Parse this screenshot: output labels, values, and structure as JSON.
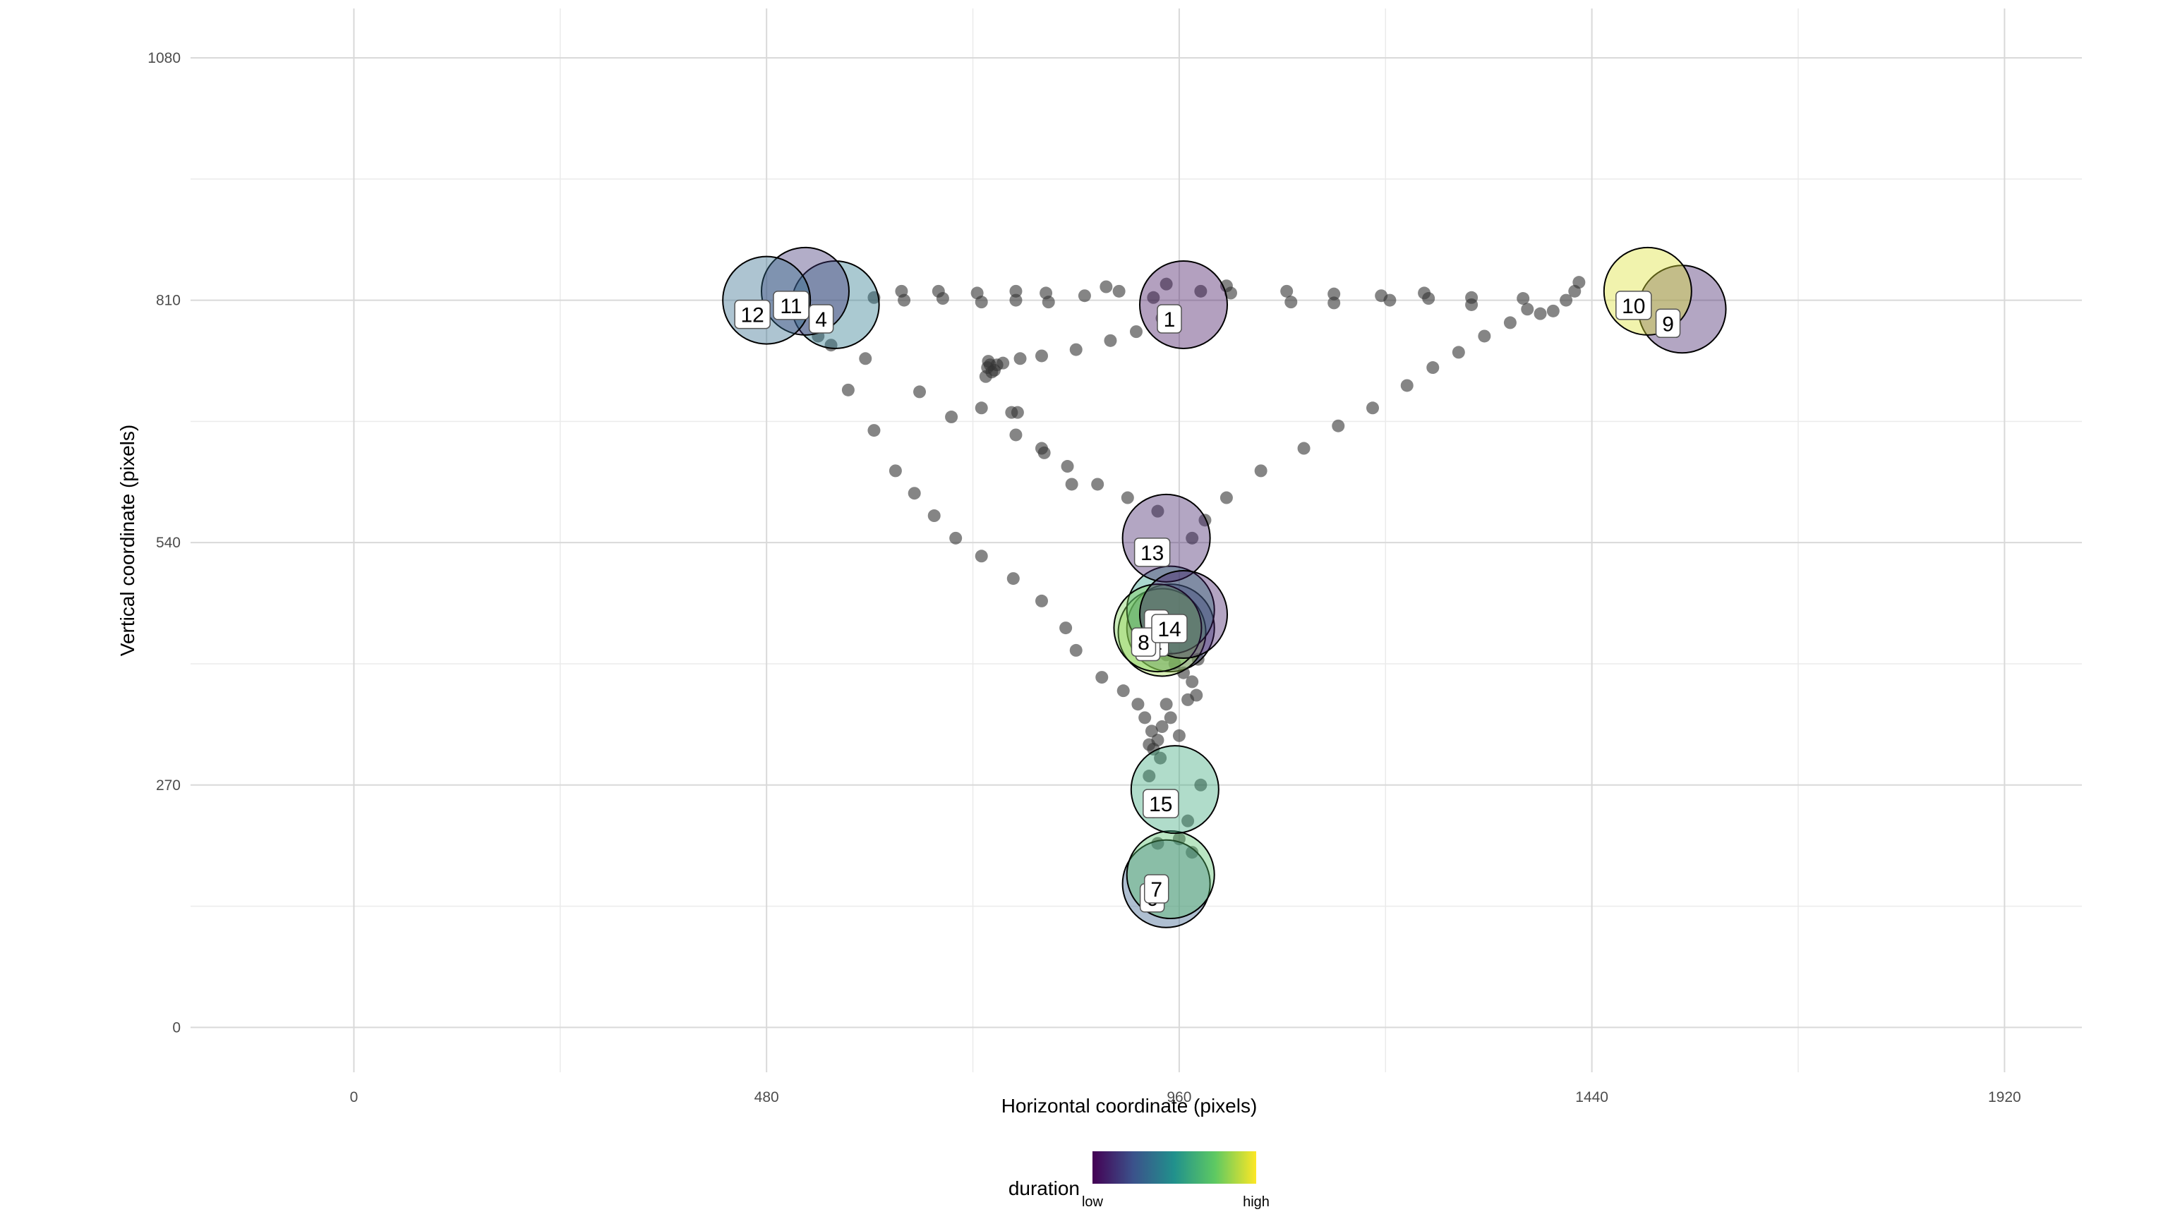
{
  "chart_data": {
    "type": "scatter",
    "title": "",
    "xlabel": "Horizontal coordinate (pixels)",
    "ylabel": "Vertical coordinate (pixels)",
    "xlim": [
      -190,
      2010
    ],
    "ylim": [
      -50,
      1135
    ],
    "x_ticks": [
      0,
      480,
      960,
      1440,
      1920
    ],
    "y_ticks": [
      0,
      270,
      540,
      810,
      1080
    ],
    "grid": true,
    "legend": {
      "position": "bottom",
      "title": "duration",
      "low_label": "low",
      "high_label": "high",
      "colormap": [
        "#440154",
        "#3b528b",
        "#21918c",
        "#5ec962",
        "#fde725"
      ]
    },
    "fixations": [
      {
        "label": "1",
        "x": 965,
        "y": 805,
        "duration": 0.05
      },
      {
        "label": "2",
        "x": 950,
        "y": 445,
        "duration": 0.2
      },
      {
        "label": "3",
        "x": 940,
        "y": 440,
        "duration": 0.85
      },
      {
        "label": "4",
        "x": 560,
        "y": 805,
        "duration": 0.4
      },
      {
        "label": "5",
        "x": 950,
        "y": 465,
        "duration": 0.55
      },
      {
        "label": "6",
        "x": 945,
        "y": 160,
        "duration": 0.3
      },
      {
        "label": "7",
        "x": 950,
        "y": 170,
        "duration": 0.7
      },
      {
        "label": "8",
        "x": 935,
        "y": 445,
        "duration": 0.8
      },
      {
        "label": "9",
        "x": 1545,
        "y": 800,
        "duration": 0.1
      },
      {
        "label": "10",
        "x": 1505,
        "y": 820,
        "duration": 0.95
      },
      {
        "label": "11",
        "x": 525,
        "y": 820,
        "duration": 0.15
      },
      {
        "label": "12",
        "x": 480,
        "y": 810,
        "duration": 0.35
      },
      {
        "label": "13",
        "x": 945,
        "y": 545,
        "duration": 0.1
      },
      {
        "label": "14",
        "x": 965,
        "y": 460,
        "duration": 0.08
      },
      {
        "label": "15",
        "x": 955,
        "y": 265,
        "duration": 0.6
      }
    ],
    "samples": [
      {
        "x": 605,
        "y": 813
      },
      {
        "x": 637,
        "y": 820
      },
      {
        "x": 640,
        "y": 810
      },
      {
        "x": 680,
        "y": 820
      },
      {
        "x": 685,
        "y": 812
      },
      {
        "x": 725,
        "y": 818
      },
      {
        "x": 730,
        "y": 808
      },
      {
        "x": 770,
        "y": 820
      },
      {
        "x": 770,
        "y": 810
      },
      {
        "x": 805,
        "y": 818
      },
      {
        "x": 808,
        "y": 808
      },
      {
        "x": 850,
        "y": 815
      },
      {
        "x": 875,
        "y": 825
      },
      {
        "x": 890,
        "y": 820
      },
      {
        "x": 930,
        "y": 813
      },
      {
        "x": 945,
        "y": 828
      },
      {
        "x": 985,
        "y": 820
      },
      {
        "x": 1015,
        "y": 826
      },
      {
        "x": 1020,
        "y": 818
      },
      {
        "x": 1085,
        "y": 820
      },
      {
        "x": 1090,
        "y": 808
      },
      {
        "x": 1140,
        "y": 817
      },
      {
        "x": 1140,
        "y": 807
      },
      {
        "x": 1195,
        "y": 815
      },
      {
        "x": 1205,
        "y": 810
      },
      {
        "x": 1245,
        "y": 818
      },
      {
        "x": 1250,
        "y": 812
      },
      {
        "x": 1300,
        "y": 813
      },
      {
        "x": 1300,
        "y": 805
      },
      {
        "x": 1360,
        "y": 812
      },
      {
        "x": 1365,
        "y": 800
      },
      {
        "x": 1395,
        "y": 798
      },
      {
        "x": 1410,
        "y": 810
      },
      {
        "x": 1420,
        "y": 820
      },
      {
        "x": 940,
        "y": 790
      },
      {
        "x": 910,
        "y": 775
      },
      {
        "x": 880,
        "y": 765
      },
      {
        "x": 840,
        "y": 755
      },
      {
        "x": 800,
        "y": 748
      },
      {
        "x": 775,
        "y": 745
      },
      {
        "x": 755,
        "y": 740
      },
      {
        "x": 740,
        "y": 738
      },
      {
        "x": 737,
        "y": 735
      },
      {
        "x": 742,
        "y": 730
      },
      {
        "x": 735,
        "y": 725
      },
      {
        "x": 745,
        "y": 732
      },
      {
        "x": 738,
        "y": 742
      },
      {
        "x": 748,
        "y": 738
      },
      {
        "x": 772,
        "y": 685
      },
      {
        "x": 770,
        "y": 660
      },
      {
        "x": 800,
        "y": 645
      },
      {
        "x": 803,
        "y": 640
      },
      {
        "x": 830,
        "y": 625
      },
      {
        "x": 835,
        "y": 605
      },
      {
        "x": 865,
        "y": 605
      },
      {
        "x": 900,
        "y": 590
      },
      {
        "x": 935,
        "y": 575
      },
      {
        "x": 975,
        "y": 545
      },
      {
        "x": 990,
        "y": 565
      },
      {
        "x": 1015,
        "y": 590
      },
      {
        "x": 1055,
        "y": 620
      },
      {
        "x": 1105,
        "y": 645
      },
      {
        "x": 1145,
        "y": 670
      },
      {
        "x": 1185,
        "y": 690
      },
      {
        "x": 1225,
        "y": 715
      },
      {
        "x": 1255,
        "y": 735
      },
      {
        "x": 1285,
        "y": 752
      },
      {
        "x": 1315,
        "y": 770
      },
      {
        "x": 1345,
        "y": 785
      },
      {
        "x": 1380,
        "y": 795
      },
      {
        "x": 1425,
        "y": 830
      },
      {
        "x": 540,
        "y": 770
      },
      {
        "x": 555,
        "y": 760
      },
      {
        "x": 575,
        "y": 710
      },
      {
        "x": 595,
        "y": 745
      },
      {
        "x": 605,
        "y": 665
      },
      {
        "x": 630,
        "y": 620
      },
      {
        "x": 652,
        "y": 595
      },
      {
        "x": 675,
        "y": 570
      },
      {
        "x": 700,
        "y": 545
      },
      {
        "x": 730,
        "y": 525
      },
      {
        "x": 767,
        "y": 500
      },
      {
        "x": 800,
        "y": 475
      },
      {
        "x": 828,
        "y": 445
      },
      {
        "x": 840,
        "y": 420
      },
      {
        "x": 870,
        "y": 390
      },
      {
        "x": 895,
        "y": 375
      },
      {
        "x": 912,
        "y": 360
      },
      {
        "x": 658,
        "y": 708
      },
      {
        "x": 695,
        "y": 680
      },
      {
        "x": 730,
        "y": 690
      },
      {
        "x": 765,
        "y": 685
      },
      {
        "x": 920,
        "y": 345
      },
      {
        "x": 928,
        "y": 330
      },
      {
        "x": 935,
        "y": 320
      },
      {
        "x": 930,
        "y": 310
      },
      {
        "x": 938,
        "y": 300
      },
      {
        "x": 925,
        "y": 315
      },
      {
        "x": 940,
        "y": 335
      },
      {
        "x": 945,
        "y": 360
      },
      {
        "x": 950,
        "y": 345
      },
      {
        "x": 960,
        "y": 325
      },
      {
        "x": 970,
        "y": 365
      },
      {
        "x": 975,
        "y": 385
      },
      {
        "x": 982,
        "y": 410
      },
      {
        "x": 980,
        "y": 370
      },
      {
        "x": 965,
        "y": 395
      },
      {
        "x": 955,
        "y": 405
      },
      {
        "x": 945,
        "y": 415
      },
      {
        "x": 950,
        "y": 250
      },
      {
        "x": 970,
        "y": 230
      },
      {
        "x": 930,
        "y": 240
      },
      {
        "x": 960,
        "y": 210
      },
      {
        "x": 975,
        "y": 195
      },
      {
        "x": 935,
        "y": 205
      },
      {
        "x": 985,
        "y": 270
      },
      {
        "x": 925,
        "y": 280
      }
    ]
  }
}
